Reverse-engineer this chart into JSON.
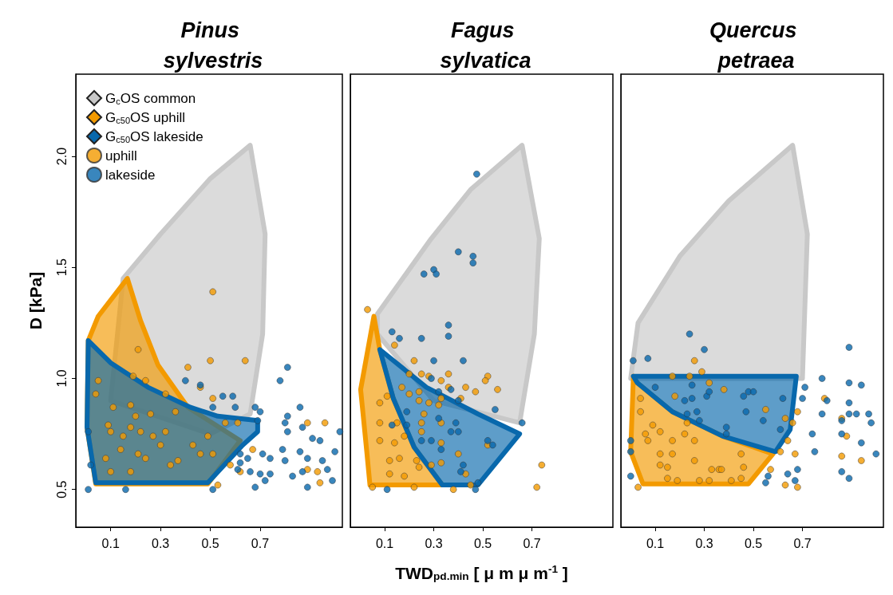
{
  "chart_data": [
    {
      "type": "scatter",
      "title": "Pinus sylvestris",
      "ylabel": "D [kPa]",
      "xlim": [
        -0.04,
        1.03
      ],
      "xticks": [
        0.1,
        0.3,
        0.5,
        0.7
      ],
      "ylim": [
        0.33,
        2.37
      ],
      "yticks": [
        0.5,
        {
          "value": 1,
          "label": "1.0"
        },
        1.5,
        {
          "value": 2,
          "label": "2.0"
        }
      ],
      "grid": false,
      "legend": "top left",
      "series": [
        {
          "name": "G$_{c}$OS common",
          "type": "area",
          "color": "#c8c8c8",
          "x": [
            0.66,
            0.72,
            0.71,
            0.66,
            0.5,
            0.1,
            0.15,
            0.3,
            0.5
          ],
          "values": [
            2.05,
            1.65,
            1.2,
            0.84,
            0.75,
            0.9,
            1.45,
            1.65,
            1.9
          ]
        },
        {
          "name": "G$_{c50}$OS uphill",
          "type": "area",
          "color": "#f39a00",
          "x": [
            0.167,
            0.05,
            0.01,
            0.005,
            0.04,
            0.49,
            0.62,
            0.41,
            0.29,
            0.22
          ],
          "values": [
            1.45,
            1.28,
            1.17,
            0.78,
            0.525,
            0.525,
            0.72,
            0.87,
            1.06,
            1.26
          ]
        },
        {
          "name": "G$_{c50}$OS lakeside",
          "type": "area",
          "color": "#0868ac",
          "x": [
            0.01,
            0.1,
            0.25,
            0.42,
            0.53,
            0.69,
            0.69,
            0.63,
            0.49,
            0.04,
            0.005
          ],
          "values": [
            1.17,
            1.07,
            0.96,
            0.87,
            0.83,
            0.81,
            0.76,
            0.7,
            0.53,
            0.53,
            0.78
          ]
        },
        {
          "name": "uphill",
          "color": "#f39a00",
          "marker": "circle",
          "x": [
            0.51,
            0.21,
            0.5,
            0.64,
            0.41,
            0.19,
            0.24,
            0.05,
            0.46,
            0.32,
            0.04,
            0.51,
            0.11,
            0.18,
            0.36,
            0.26,
            0.2,
            0.56,
            0.61,
            0.89,
            0.96,
            0.09,
            0.18,
            0.1,
            0.22,
            0.32,
            0.15,
            0.27,
            0.49,
            0.43,
            0.3,
            0.14,
            0.21,
            0.46,
            0.08,
            0.24,
            0.37,
            0.51,
            0.67,
            0.58,
            0.34,
            0.18,
            0.1,
            0.89,
            0.93,
            0.62,
            0.94,
            0.53
          ],
          "values": [
            1.39,
            1.13,
            1.08,
            1.08,
            1.05,
            1.01,
            0.99,
            0.99,
            0.96,
            0.93,
            0.93,
            0.91,
            0.87,
            0.88,
            0.85,
            0.84,
            0.83,
            0.8,
            0.8,
            0.8,
            0.8,
            0.79,
            0.78,
            0.76,
            0.76,
            0.76,
            0.74,
            0.74,
            0.74,
            0.7,
            0.7,
            0.68,
            0.66,
            0.66,
            0.64,
            0.64,
            0.63,
            0.66,
            0.68,
            0.61,
            0.61,
            0.58,
            0.58,
            0.59,
            0.58,
            0.58,
            0.53,
            0.52
          ]
        },
        {
          "name": "lakeside",
          "color": "#0868ac",
          "marker": "circle",
          "x": [
            0.81,
            0.78,
            0.4,
            0.46,
            0.55,
            0.59,
            0.51,
            0.6,
            0.86,
            0.68,
            0.7,
            0.81,
            0.69,
            0.8,
            0.87,
            0.81,
            1.02,
            0.91,
            0.94,
            0.79,
            0.86,
            1.0,
            0.71,
            0.62,
            0.65,
            0.74,
            0.8,
            0.89,
            0.95,
            0.62,
            0.66,
            0.7,
            0.74,
            0.87,
            0.97,
            0.61,
            0.83,
            0.72,
            0.99,
            0.89,
            0.68,
            0.51,
            0.01,
            0.01,
            0.02,
            0.16
          ],
          "values": [
            1.05,
            0.99,
            0.99,
            0.97,
            0.92,
            0.92,
            0.87,
            0.87,
            0.87,
            0.87,
            0.85,
            0.83,
            0.81,
            0.8,
            0.78,
            0.76,
            0.76,
            0.73,
            0.72,
            0.68,
            0.67,
            0.67,
            0.66,
            0.66,
            0.64,
            0.64,
            0.63,
            0.64,
            0.63,
            0.62,
            0.58,
            0.57,
            0.57,
            0.58,
            0.59,
            0.59,
            0.56,
            0.54,
            0.54,
            0.51,
            0.51,
            0.5,
            0.5,
            0.76,
            0.61,
            0.5
          ]
        }
      ]
    },
    {
      "type": "scatter",
      "title": "Fagus sylvatica",
      "xlabel": "TWD$_{pd.min}$ [ μ m μ m$^{-1}$ ]",
      "xlim": [
        -0.04,
        1.03
      ],
      "xticks": [
        0.1,
        0.3,
        0.5,
        0.7
      ],
      "ylim": [
        0.33,
        2.37
      ],
      "tick_labels": "x",
      "grid": false,
      "series": [
        {
          "type": "area",
          "color": "#c8c8c8",
          "x": [
            0.66,
            0.73,
            0.71,
            0.65,
            0.3,
            0.07,
            0.07,
            0.29,
            0.45
          ],
          "values": [
            2.05,
            1.63,
            1.2,
            0.8,
            0.9,
            1.2,
            1.29,
            1.63,
            1.85
          ]
        },
        {
          "type": "area",
          "color": "#f39a00",
          "x": [
            0.056,
            0.002,
            0.027,
            0.04,
            0.335,
            0.22,
            0.135,
            0.08
          ],
          "values": [
            1.28,
            0.95,
            0.67,
            0.52,
            0.52,
            0.69,
            0.91,
            1.13
          ]
        },
        {
          "type": "area",
          "color": "#0868ac",
          "x": [
            0.08,
            0.27,
            0.48,
            0.65,
            0.48,
            0.335,
            0.22,
            0.135
          ],
          "values": [
            1.13,
            0.96,
            0.84,
            0.75,
            0.52,
            0.52,
            0.69,
            0.91
          ]
        },
        {
          "color": "#f39a00",
          "marker": "circle",
          "x": [
            0.03,
            0.14,
            0.22,
            0.2,
            0.25,
            0.28,
            0.33,
            0.36,
            0.52,
            0.51,
            0.56,
            0.47,
            0.43,
            0.36,
            0.17,
            0.24,
            0.2,
            0.11,
            0.41,
            0.33,
            0.24,
            0.28,
            0.32,
            0.08,
            0.26,
            0.33,
            0.25,
            0.15,
            0.08,
            0.25,
            0.18,
            0.14,
            0.33,
            0.52,
            0.08,
            0.4,
            0.33,
            0.29,
            0.23,
            0.16,
            0.12,
            0.43,
            0.18,
            0.12,
            0.74,
            0.72,
            0.38,
            0.45,
            0.22,
            0.05,
            0.24
          ],
          "values": [
            1.31,
            1.15,
            1.08,
            1.02,
            1.02,
            1.01,
            0.99,
            1.02,
            1.01,
            0.99,
            0.95,
            0.94,
            0.96,
            0.96,
            0.96,
            0.94,
            0.93,
            0.92,
            0.91,
            0.91,
            0.9,
            0.89,
            0.88,
            0.89,
            0.84,
            0.8,
            0.8,
            0.8,
            0.8,
            0.76,
            0.74,
            0.71,
            0.71,
            0.7,
            0.72,
            0.66,
            0.62,
            0.61,
            0.63,
            0.64,
            0.63,
            0.57,
            0.56,
            0.57,
            0.61,
            0.51,
            0.5,
            0.52,
            0.51,
            0.51,
            0.6
          ]
        },
        {
          "color": "#0868ac",
          "marker": "circle",
          "x": [
            0.475,
            0.4,
            0.46,
            0.46,
            0.26,
            0.3,
            0.31,
            0.36,
            0.36,
            0.13,
            0.16,
            0.25,
            0.3,
            0.42,
            0.29,
            0.37,
            0.32,
            0.4,
            0.55,
            0.66,
            0.19,
            0.19,
            0.32,
            0.39,
            0.37,
            0.4,
            0.29,
            0.52,
            0.54,
            0.42,
            0.41,
            0.48,
            0.47,
            0.25,
            0.33,
            0.11,
            0.13
          ],
          "values": [
            1.92,
            1.57,
            1.55,
            1.52,
            1.47,
            1.49,
            1.47,
            1.24,
            1.19,
            1.21,
            1.18,
            1.18,
            1.08,
            1.08,
            1.0,
            0.95,
            0.94,
            0.9,
            0.86,
            0.8,
            0.85,
            0.79,
            0.82,
            0.8,
            0.76,
            0.76,
            0.72,
            0.72,
            0.7,
            0.61,
            0.58,
            0.53,
            0.5,
            0.72,
            0.68,
            0.5,
            0.79
          ]
        }
      ]
    },
    {
      "type": "scatter",
      "title": "Quercus petraea",
      "xlim": [
        -0.04,
        1.03
      ],
      "xticks": [
        0.1,
        0.3,
        0.5,
        0.7
      ],
      "ylim": [
        0.33,
        2.37
      ],
      "tick_labels": "x",
      "grid": false,
      "series": [
        {
          "type": "area",
          "color": "#c8c8c8",
          "x": [
            0.66,
            0.72,
            0.7,
            0.0,
            0.03,
            0.2,
            0.4
          ],
          "values": [
            2.05,
            1.65,
            1.0,
            1.0,
            1.25,
            1.55,
            1.8
          ]
        },
        {
          "type": "area",
          "color": "#f39a00",
          "x": [
            0.011,
            0.0,
            0.05,
            0.48,
            0.58,
            0.375,
            0.17,
            0.027
          ],
          "values": [
            1.01,
            0.67,
            0.525,
            0.525,
            0.66,
            0.74,
            0.85,
            0.98
          ]
        },
        {
          "type": "area",
          "color": "#0868ac",
          "x": [
            0.011,
            0.675,
            0.65,
            0.59,
            0.375,
            0.17,
            0.027
          ],
          "values": [
            1.01,
            1.01,
            0.77,
            0.67,
            0.74,
            0.85,
            0.98
          ]
        },
        {
          "color": "#f39a00",
          "marker": "circle",
          "x": [
            0.26,
            0.29,
            0.17,
            0.24,
            0.32,
            0.38,
            0.18,
            0.55,
            0.79,
            0.68,
            0.63,
            0.66,
            0.86,
            0.88,
            0.64,
            0.61,
            0.67,
            0.86,
            0.94,
            0.57,
            0.63,
            0.68,
            0.03,
            0.04,
            0.04,
            0.09,
            0.12,
            0.06,
            0.23,
            0.22,
            0.17,
            0.26,
            0.07,
            0.12,
            0.17,
            0.26,
            0.12,
            0.15,
            0.33,
            0.36,
            0.37,
            0.45,
            0.46,
            0.15,
            0.28,
            0.32,
            0.41,
            0.45,
            0.19
          ],
          "values": [
            1.08,
            1.03,
            1.01,
            1.01,
            0.98,
            0.95,
            0.92,
            0.86,
            0.91,
            0.85,
            0.82,
            0.8,
            0.82,
            0.74,
            0.72,
            0.67,
            0.66,
            0.65,
            0.63,
            0.59,
            0.52,
            0.51,
            0.51,
            0.91,
            0.85,
            0.79,
            0.76,
            0.75,
            0.8,
            0.75,
            0.72,
            0.72,
            0.72,
            0.66,
            0.66,
            0.63,
            0.61,
            0.6,
            0.59,
            0.59,
            0.59,
            0.66,
            0.6,
            0.55,
            0.54,
            0.54,
            0.54,
            0.55,
            0.54
          ]
        },
        {
          "color": "#0868ac",
          "marker": "circle",
          "x": [
            0.24,
            0.3,
            0.01,
            0.07,
            0.89,
            0.78,
            0.89,
            0.94,
            0.71,
            0.7,
            0.89,
            0.8,
            0.78,
            0.89,
            0.92,
            0.97,
            0.98,
            0.86,
            0.74,
            0.86,
            0.94,
            0.75,
            1.0,
            0.86,
            0.89,
            0.68,
            0.64,
            0.67,
            0.56,
            0.55,
            0.0,
            0.0,
            0.0,
            0.1,
            0.25,
            0.22,
            0.25,
            0.31,
            0.32,
            0.46,
            0.48,
            0.5,
            0.62,
            0.47,
            0.54,
            0.23,
            0.27,
            0.28,
            0.61,
            0.39,
            0.39
          ],
          "values": [
            1.2,
            1.13,
            1.08,
            1.09,
            1.14,
            1.0,
            0.98,
            0.97,
            0.96,
            0.91,
            0.89,
            0.9,
            0.84,
            0.84,
            0.84,
            0.84,
            0.8,
            0.81,
            0.75,
            0.75,
            0.71,
            0.67,
            0.66,
            0.58,
            0.55,
            0.59,
            0.57,
            0.54,
            0.56,
            0.53,
            0.56,
            0.67,
            0.72,
            0.96,
            0.97,
            0.9,
            0.91,
            0.92,
            0.94,
            0.92,
            0.94,
            0.94,
            0.91,
            0.85,
            0.81,
            0.84,
            0.85,
            0.81,
            0.77,
            0.75,
            0.78
          ]
        }
      ]
    }
  ]
}
